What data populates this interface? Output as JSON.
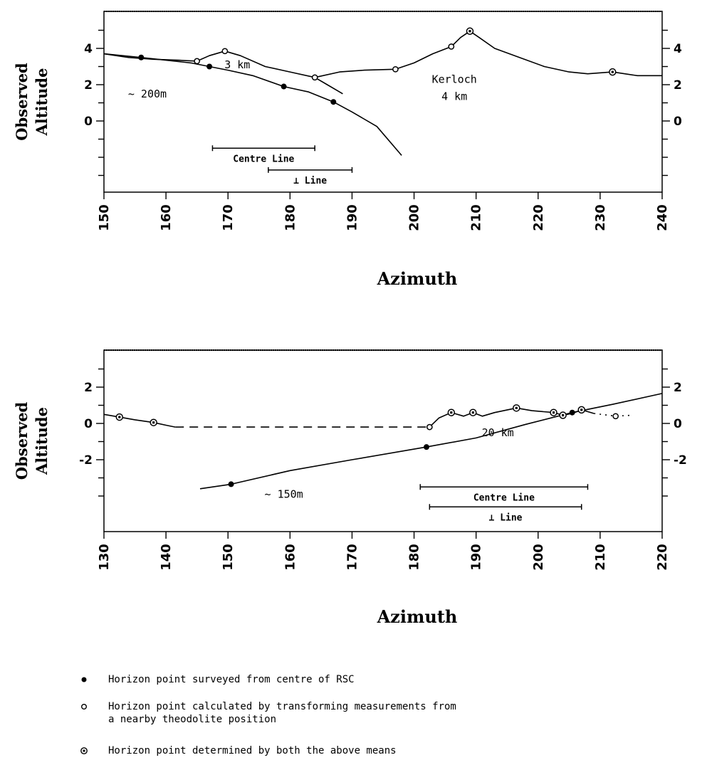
{
  "chart_data": [
    {
      "type": "line",
      "title": "",
      "xlabel": "Azimuth",
      "ylabel": "Observed Altitude",
      "xlim": [
        150,
        240
      ],
      "ylim": [
        -6,
        6
      ],
      "x_ticks": [
        150,
        160,
        170,
        180,
        190,
        200,
        210,
        220,
        230,
        240
      ],
      "y_ticks": [
        0,
        2,
        4
      ],
      "y_tick_labels": [
        "0",
        "2",
        "4"
      ],
      "series": [
        {
          "style": "solid",
          "x": [
            150,
            154,
            158,
            162,
            165,
            167,
            169.5,
            172,
            176,
            180,
            184,
            188,
            192,
            197,
            200,
            203,
            206,
            207.5,
            209,
            210.5,
            213,
            217,
            221,
            225,
            228,
            232,
            236,
            240
          ],
          "y": [
            3.7,
            3.5,
            3.4,
            3.35,
            3.3,
            3.6,
            3.85,
            3.6,
            3.0,
            2.7,
            2.4,
            2.7,
            2.8,
            2.85,
            3.2,
            3.7,
            4.1,
            4.6,
            4.95,
            4.6,
            4.0,
            3.5,
            3.0,
            2.7,
            2.6,
            2.7,
            2.5,
            2.5
          ]
        },
        {
          "style": "solid",
          "x": [
            184,
            186,
            188.5
          ],
          "y": [
            2.4,
            2.0,
            1.5
          ]
        },
        {
          "style": "solid",
          "x": [
            150,
            156,
            160,
            164,
            167,
            170,
            174,
            179,
            183,
            187,
            190,
            194,
            198
          ],
          "y": [
            3.7,
            3.5,
            3.35,
            3.2,
            3.0,
            2.8,
            2.5,
            1.9,
            1.6,
            1.05,
            0.5,
            -0.3,
            -1.9
          ]
        }
      ],
      "points": {
        "surveyed": {
          "x": [
            156,
            167,
            179,
            187
          ],
          "y": [
            3.5,
            3.0,
            1.9,
            1.05
          ]
        },
        "calculated": {
          "x": [
            165,
            169.5,
            184,
            197,
            206
          ],
          "y": [
            3.3,
            3.85,
            2.4,
            2.85,
            4.1
          ]
        },
        "both": {
          "x": [
            209,
            232
          ],
          "y": [
            4.95,
            2.7
          ]
        }
      },
      "annotations": [
        {
          "text": "3 km",
          "x": 171.5,
          "y": 3.1
        },
        {
          "text": "~ 200m",
          "x": 157,
          "y": 1.5
        },
        {
          "text": "Kerloch",
          "x": 206.5,
          "y": 2.3
        },
        {
          "text": "4 km",
          "x": 206.5,
          "y": 1.35
        }
      ],
      "ranges": [
        {
          "label": "Centre Line",
          "x": [
            167.5,
            184
          ],
          "y": -1.5
        },
        {
          "label": "⊥ Line",
          "x": [
            176.5,
            190
          ],
          "y": -2.7
        }
      ]
    },
    {
      "type": "line",
      "title": "",
      "xlabel": "Azimuth",
      "ylabel": "Observed Altitude",
      "xlim": [
        130,
        220
      ],
      "ylim": [
        -6,
        4
      ],
      "x_ticks": [
        130,
        140,
        150,
        160,
        170,
        180,
        190,
        200,
        210,
        220
      ],
      "y_ticks": [
        -2,
        0,
        2
      ],
      "y_tick_labels": [
        "-2",
        "0",
        "2"
      ],
      "series": [
        {
          "style": "solid",
          "x": [
            130,
            132.5,
            135,
            138,
            140,
            141.5
          ],
          "y": [
            0.5,
            0.35,
            0.2,
            0.05,
            -0.1,
            -0.2
          ]
        },
        {
          "style": "dashed",
          "x": [
            141.5,
            182.5
          ],
          "y": [
            -0.2,
            -0.2
          ]
        },
        {
          "style": "solid",
          "x": [
            182.5,
            184,
            186,
            188,
            189.5,
            191,
            193,
            196.5,
            199,
            202.5,
            204,
            205.5,
            207,
            209
          ],
          "y": [
            -0.2,
            0.3,
            0.6,
            0.4,
            0.6,
            0.4,
            0.6,
            0.85,
            0.7,
            0.6,
            0.45,
            0.55,
            0.75,
            0.55
          ]
        },
        {
          "style": "dotted",
          "x": [
            209,
            212.5,
            215
          ],
          "y": [
            0.55,
            0.4,
            0.45
          ]
        },
        {
          "style": "solid",
          "x": [
            145.5,
            150.5,
            160,
            170,
            182,
            190,
            198,
            205.5,
            212,
            220
          ],
          "y": [
            -3.6,
            -3.35,
            -2.6,
            -2.0,
            -1.3,
            -0.8,
            -0.05,
            0.6,
            1.05,
            1.65
          ]
        }
      ],
      "points": {
        "surveyed": {
          "x": [
            150.5,
            182,
            205.5
          ],
          "y": [
            -3.35,
            -1.3,
            0.6
          ]
        },
        "calculated": {
          "x": [
            182.5,
            212.5
          ],
          "y": [
            -0.2,
            0.4
          ]
        },
        "both": {
          "x": [
            132.5,
            138,
            186,
            189.5,
            196.5,
            202.5,
            204,
            207
          ],
          "y": [
            0.35,
            0.05,
            0.6,
            0.6,
            0.85,
            0.6,
            0.45,
            0.75
          ]
        }
      },
      "annotations": [
        {
          "text": "20 km",
          "x": 193.5,
          "y": -0.5
        },
        {
          "text": "~ 150m",
          "x": 159,
          "y": -3.9
        }
      ],
      "ranges": [
        {
          "label": "Centre Line",
          "x": [
            181,
            208
          ],
          "y": -3.5
        },
        {
          "label": "⊥ Line",
          "x": [
            182.5,
            207
          ],
          "y": -4.6
        }
      ]
    }
  ],
  "legend": [
    {
      "symbol": "filled-circle",
      "text": "Horizon point surveyed from centre of RSC"
    },
    {
      "symbol": "open-circle",
      "text": "Horizon point calculated by transforming measurements from\n  a nearby theodolite position"
    },
    {
      "symbol": "dotted-square-circle",
      "text": "Horizon point determined by both the above means"
    }
  ]
}
